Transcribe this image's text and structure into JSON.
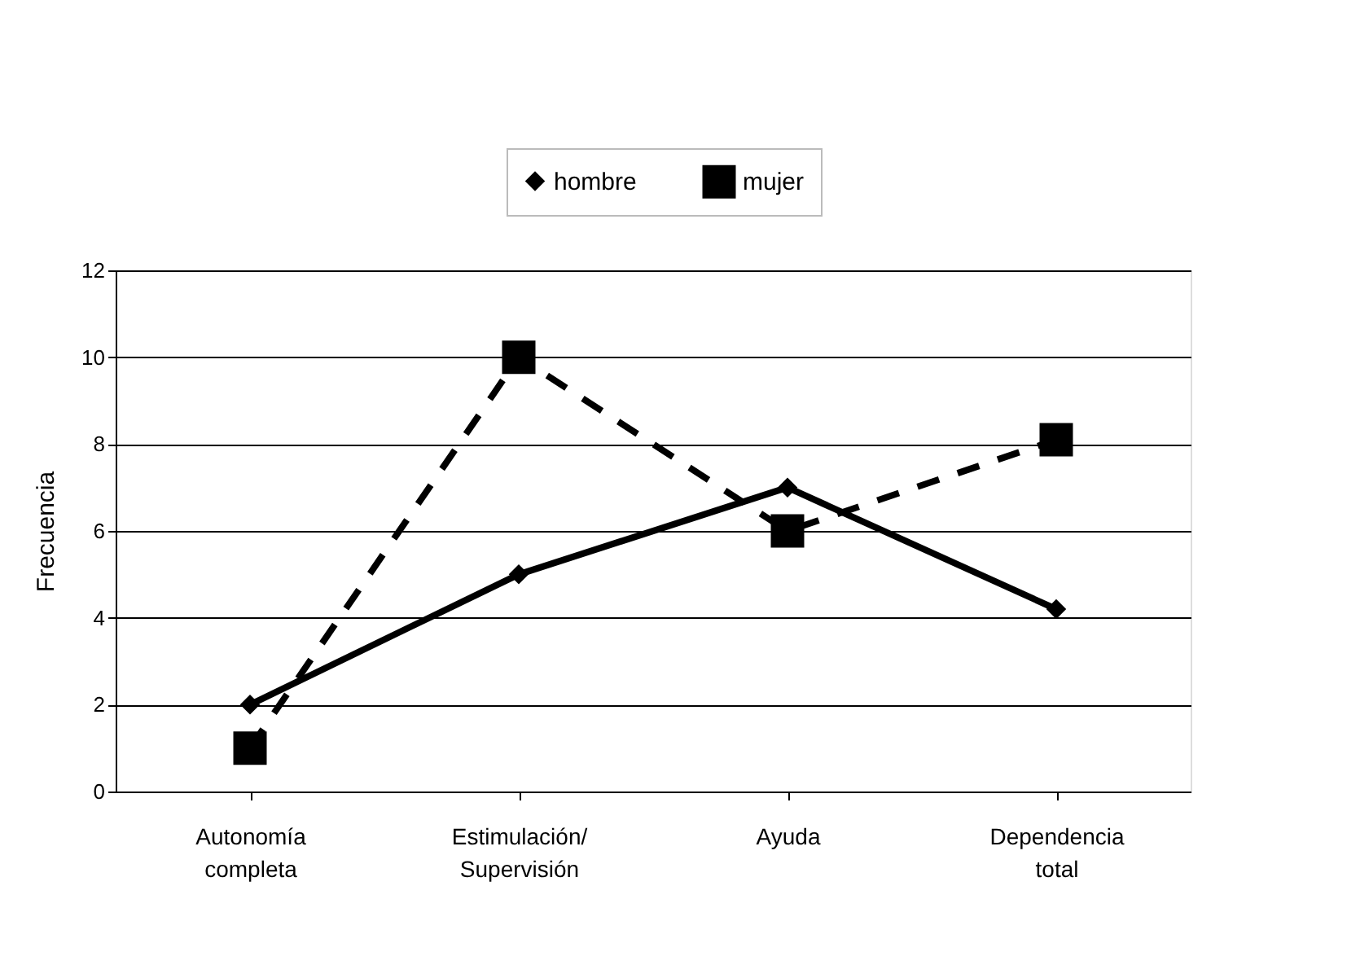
{
  "chart_data": {
    "type": "line",
    "ylabel": "Frecuencia",
    "categories": [
      "Autonomía\ncompleta",
      "Estimulación/\nSupervisión",
      "Ayuda",
      "Dependencia\ntotal"
    ],
    "series": [
      {
        "name": "hombre",
        "color": "#000000",
        "values": [
          2,
          5,
          7,
          4.2
        ],
        "marker": "diamond",
        "line_style": "solid"
      },
      {
        "name": "mujer",
        "color": "#000000",
        "values": [
          1,
          10,
          6,
          8.1
        ],
        "marker": "square",
        "line_style": "dashed"
      }
    ],
    "ylim": [
      0,
      12
    ],
    "yticks": [
      0,
      2,
      4,
      6,
      8,
      10,
      12
    ],
    "grid": "y",
    "legend": "top right"
  }
}
